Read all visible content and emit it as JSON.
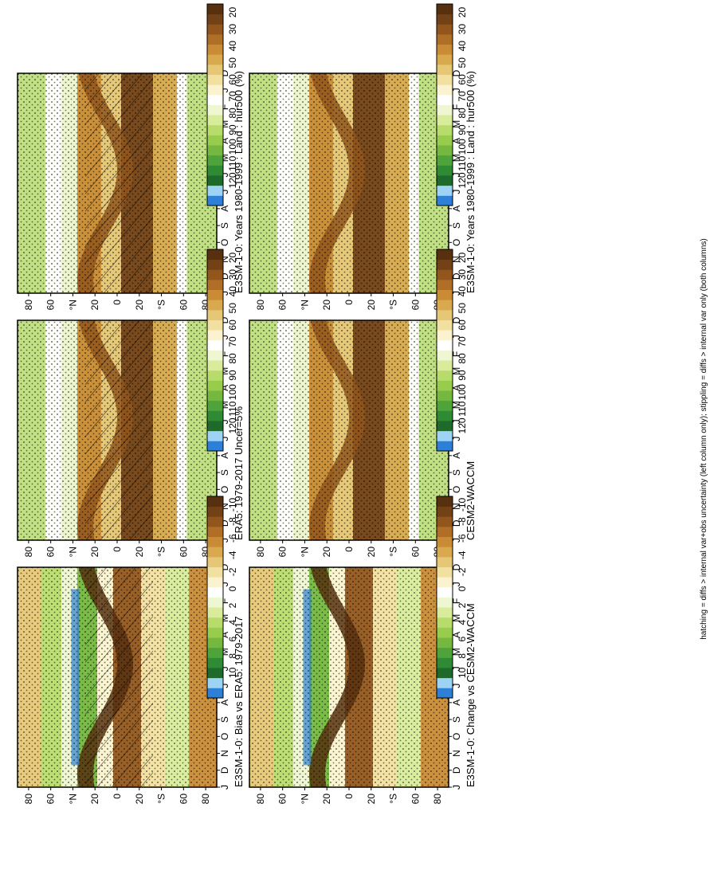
{
  "figure": {
    "footnote": "hatching = diffs > internal var+obs uncertainty (left column only); stippling = diffs > internal var only (both columns)"
  },
  "months": [
    "D",
    "J",
    "F",
    "M",
    "A",
    "M",
    "J",
    "J",
    "A",
    "S",
    "O",
    "N",
    "D",
    "J"
  ],
  "lat_ticks": [
    "80",
    "60",
    "°N",
    "20",
    "0",
    "20",
    "°S",
    "60",
    "80"
  ],
  "colorbars": {
    "absolute": {
      "labels": [
        "120",
        "110",
        "100",
        "90",
        "80",
        "70",
        "60",
        "50",
        "40",
        "30",
        "20"
      ],
      "colors": [
        "#2E7FD6",
        "#9FD3F5",
        "#1E6A2A",
        "#2F8A34",
        "#4FA33B",
        "#74B83F",
        "#97CC4C",
        "#B8DC6C",
        "#D8EC9B",
        "#EEF6D2",
        "#FFFFFF",
        "#FBF3CF",
        "#F2E0A0",
        "#E6C776",
        "#D8A94E",
        "#C98B35",
        "#B06E27",
        "#92561C",
        "#734116",
        "#56300F"
      ]
    },
    "difference": {
      "labels": [
        "10",
        "8",
        "6",
        "4",
        "2",
        "0",
        "-2",
        "-4",
        "-6",
        "-8",
        "-10"
      ],
      "colors": [
        "#2E7FD6",
        "#9FD3F5",
        "#1E6A2A",
        "#2F8A34",
        "#4FA33B",
        "#74B83F",
        "#97CC4C",
        "#B8DC6C",
        "#D8EC9B",
        "#EEF6D2",
        "#FFFFFF",
        "#FBF3CF",
        "#F2E0A0",
        "#E6C776",
        "#D8A94E",
        "#C98B35",
        "#B06E27",
        "#92561C",
        "#734116",
        "#56300F"
      ]
    }
  },
  "chart_data": [
    {
      "type": "heatmap",
      "title": "E3SM-1-0: Years 1980-1999 : Land : hur500 (%)",
      "xlabel": "",
      "ylabel": "",
      "hatching": true,
      "stippling": true,
      "colorbar": "absolute"
    },
    {
      "type": "heatmap",
      "title": "E3SM-1-0: Years 1980-1999 : Land : hur500 (%)",
      "xlabel": "",
      "ylabel": "",
      "hatching": false,
      "stippling": true,
      "colorbar": "absolute"
    },
    {
      "type": "heatmap",
      "title": "ERA5: 1979-2017 Uncer=5%",
      "xlabel": "",
      "ylabel": "",
      "hatching": true,
      "stippling": true,
      "colorbar": "absolute"
    },
    {
      "type": "heatmap",
      "title": "CESM2-WACCM",
      "xlabel": "",
      "ylabel": "",
      "hatching": false,
      "stippling": true,
      "colorbar": "absolute"
    },
    {
      "type": "heatmap",
      "title": "E3SM-1-0: Bias vs ERA5: 1979-2017",
      "xlabel": "",
      "ylabel": "",
      "hatching": true,
      "stippling": true,
      "colorbar": "difference"
    },
    {
      "type": "heatmap",
      "title": "E3SM-1-0: Change vs CESM2-WACCM",
      "xlabel": "",
      "ylabel": "",
      "hatching": false,
      "stippling": true,
      "colorbar": "difference"
    }
  ]
}
